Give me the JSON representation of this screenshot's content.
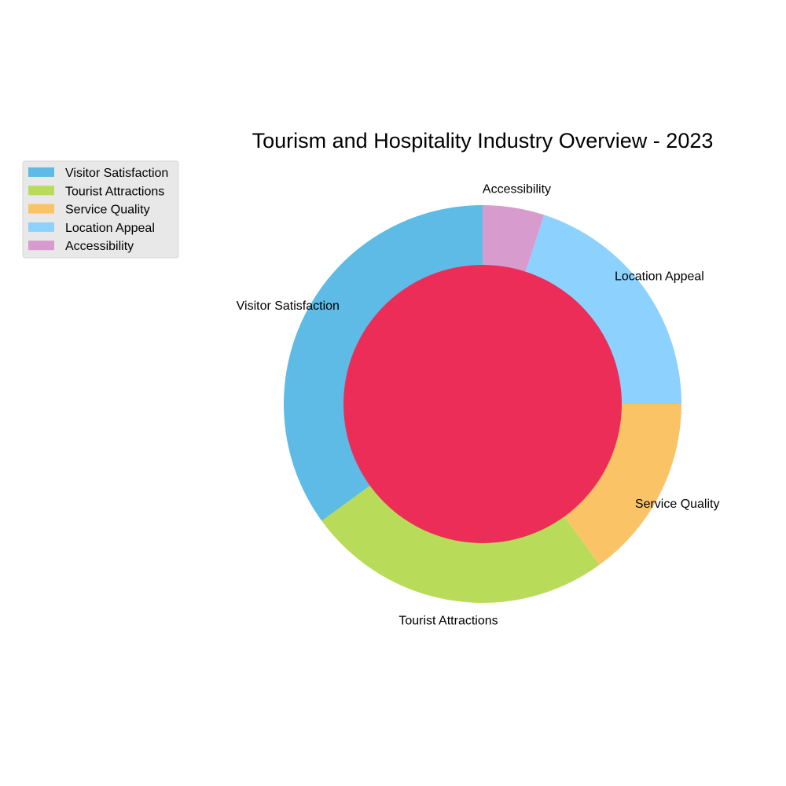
{
  "chart_data": {
    "type": "pie",
    "style": "donut",
    "title": "Tourism and Hospitality Industry Overview - 2023",
    "categories": [
      "Visitor Satisfaction",
      "Tourist Attractions",
      "Service Quality",
      "Location Appeal",
      "Accessibility"
    ],
    "values": [
      35,
      25,
      15,
      20,
      5
    ],
    "unit": "%",
    "start_angle_deg": 90,
    "direction": "counterclockwise",
    "center_circle_color": "#ec2d58",
    "colors": [
      "#5dbbe6",
      "#b8dc5a",
      "#fac466",
      "#8dd1ff",
      "#d89bce"
    ],
    "legend": {
      "placement": "upper-left",
      "entries": [
        "Visitor Satisfaction",
        "Tourist Attractions",
        "Service Quality",
        "Location Appeal",
        "Accessibility"
      ]
    }
  }
}
